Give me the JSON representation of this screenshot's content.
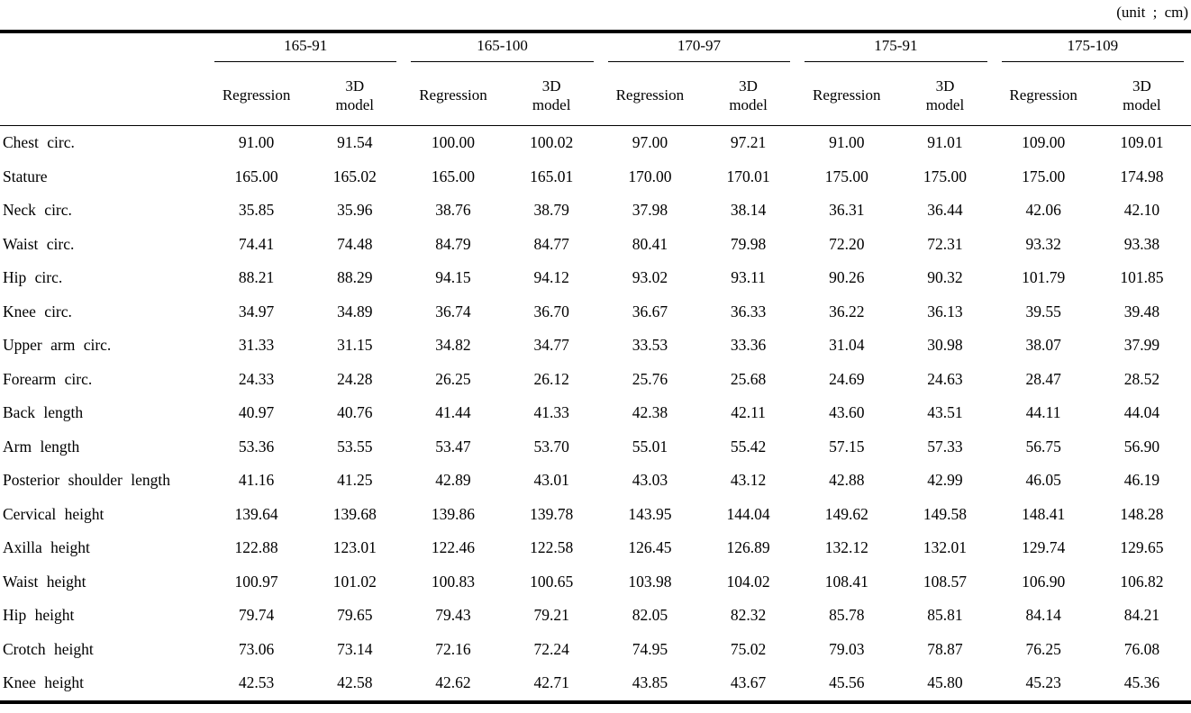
{
  "page": {
    "unit_label": "(unit ; cm)"
  },
  "table": {
    "groups": [
      "165-91",
      "165-100",
      "170-97",
      "175-91",
      "175-109"
    ],
    "sub_header": {
      "regression": "Regression",
      "model_line1": "3D",
      "model_line2": "model"
    },
    "rows": [
      {
        "label": "Chest circ.",
        "values": [
          "91.00",
          "91.54",
          "100.00",
          "100.02",
          "97.00",
          "97.21",
          "91.00",
          "91.01",
          "109.00",
          "109.01"
        ]
      },
      {
        "label": "Stature",
        "values": [
          "165.00",
          "165.02",
          "165.00",
          "165.01",
          "170.00",
          "170.01",
          "175.00",
          "175.00",
          "175.00",
          "174.98"
        ]
      },
      {
        "label": "Neck circ.",
        "values": [
          "35.85",
          "35.96",
          "38.76",
          "38.79",
          "37.98",
          "38.14",
          "36.31",
          "36.44",
          "42.06",
          "42.10"
        ]
      },
      {
        "label": "Waist circ.",
        "values": [
          "74.41",
          "74.48",
          "84.79",
          "84.77",
          "80.41",
          "79.98",
          "72.20",
          "72.31",
          "93.32",
          "93.38"
        ]
      },
      {
        "label": "Hip circ.",
        "values": [
          "88.21",
          "88.29",
          "94.15",
          "94.12",
          "93.02",
          "93.11",
          "90.26",
          "90.32",
          "101.79",
          "101.85"
        ]
      },
      {
        "label": "Knee circ.",
        "values": [
          "34.97",
          "34.89",
          "36.74",
          "36.70",
          "36.67",
          "36.33",
          "36.22",
          "36.13",
          "39.55",
          "39.48"
        ]
      },
      {
        "label": "Upper arm circ.",
        "values": [
          "31.33",
          "31.15",
          "34.82",
          "34.77",
          "33.53",
          "33.36",
          "31.04",
          "30.98",
          "38.07",
          "37.99"
        ]
      },
      {
        "label": "Forearm circ.",
        "values": [
          "24.33",
          "24.28",
          "26.25",
          "26.12",
          "25.76",
          "25.68",
          "24.69",
          "24.63",
          "28.47",
          "28.52"
        ]
      },
      {
        "label": "Back length",
        "values": [
          "40.97",
          "40.76",
          "41.44",
          "41.33",
          "42.38",
          "42.11",
          "43.60",
          "43.51",
          "44.11",
          "44.04"
        ]
      },
      {
        "label": "Arm length",
        "values": [
          "53.36",
          "53.55",
          "53.47",
          "53.70",
          "55.01",
          "55.42",
          "57.15",
          "57.33",
          "56.75",
          "56.90"
        ]
      },
      {
        "label": "Posterior shoulder length",
        "values": [
          "41.16",
          "41.25",
          "42.89",
          "43.01",
          "43.03",
          "43.12",
          "42.88",
          "42.99",
          "46.05",
          "46.19"
        ]
      },
      {
        "label": "Cervical height",
        "values": [
          "139.64",
          "139.68",
          "139.86",
          "139.78",
          "143.95",
          "144.04",
          "149.62",
          "149.58",
          "148.41",
          "148.28"
        ]
      },
      {
        "label": "Axilla height",
        "values": [
          "122.88",
          "123.01",
          "122.46",
          "122.58",
          "126.45",
          "126.89",
          "132.12",
          "132.01",
          "129.74",
          "129.65"
        ]
      },
      {
        "label": "Waist height",
        "values": [
          "100.97",
          "101.02",
          "100.83",
          "100.65",
          "103.98",
          "104.02",
          "108.41",
          "108.57",
          "106.90",
          "106.82"
        ]
      },
      {
        "label": "Hip height",
        "values": [
          "79.74",
          "79.65",
          "79.43",
          "79.21",
          "82.05",
          "82.32",
          "85.78",
          "85.81",
          "84.14",
          "84.21"
        ]
      },
      {
        "label": "Crotch height",
        "values": [
          "73.06",
          "73.14",
          "72.16",
          "72.24",
          "74.95",
          "75.02",
          "79.03",
          "78.87",
          "76.25",
          "76.08"
        ]
      },
      {
        "label": "Knee height",
        "values": [
          "42.53",
          "42.58",
          "42.62",
          "42.71",
          "43.85",
          "43.67",
          "45.56",
          "45.80",
          "45.23",
          "45.36"
        ]
      }
    ]
  }
}
